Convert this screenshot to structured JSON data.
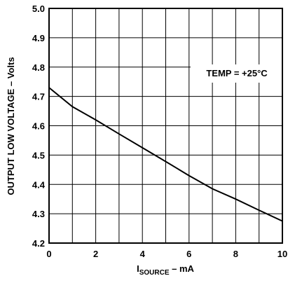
{
  "chart_data": {
    "type": "line",
    "xlabel": {
      "main": "I",
      "sub": "SOURCE",
      "suffix": " – mA"
    },
    "ylabel": "OUTPUT LOW VOLTAGE – Volts",
    "xlim": [
      0,
      10
    ],
    "ylim": [
      4.2,
      5.0
    ],
    "xticks": [
      0,
      2,
      4,
      6,
      8,
      10
    ],
    "yticks": [
      4.2,
      4.3,
      4.4,
      4.5,
      4.6,
      4.7,
      4.8,
      4.9,
      5.0
    ],
    "xtick_labels": [
      "0",
      "2",
      "4",
      "6",
      "8",
      "10"
    ],
    "ytick_labels": [
      "4.2",
      "4.3",
      "4.4",
      "4.5",
      "4.6",
      "4.7",
      "4.8",
      "4.9",
      "5.0"
    ],
    "grid": true,
    "annotation": "TEMP = +25°C",
    "series": [
      {
        "x": [
          0,
          1,
          2,
          3,
          4,
          5,
          6,
          7,
          8,
          9,
          10
        ],
        "y": [
          4.73,
          4.665,
          4.62,
          4.572,
          4.525,
          4.478,
          4.43,
          4.385,
          4.35,
          4.312,
          4.275
        ]
      }
    ]
  }
}
